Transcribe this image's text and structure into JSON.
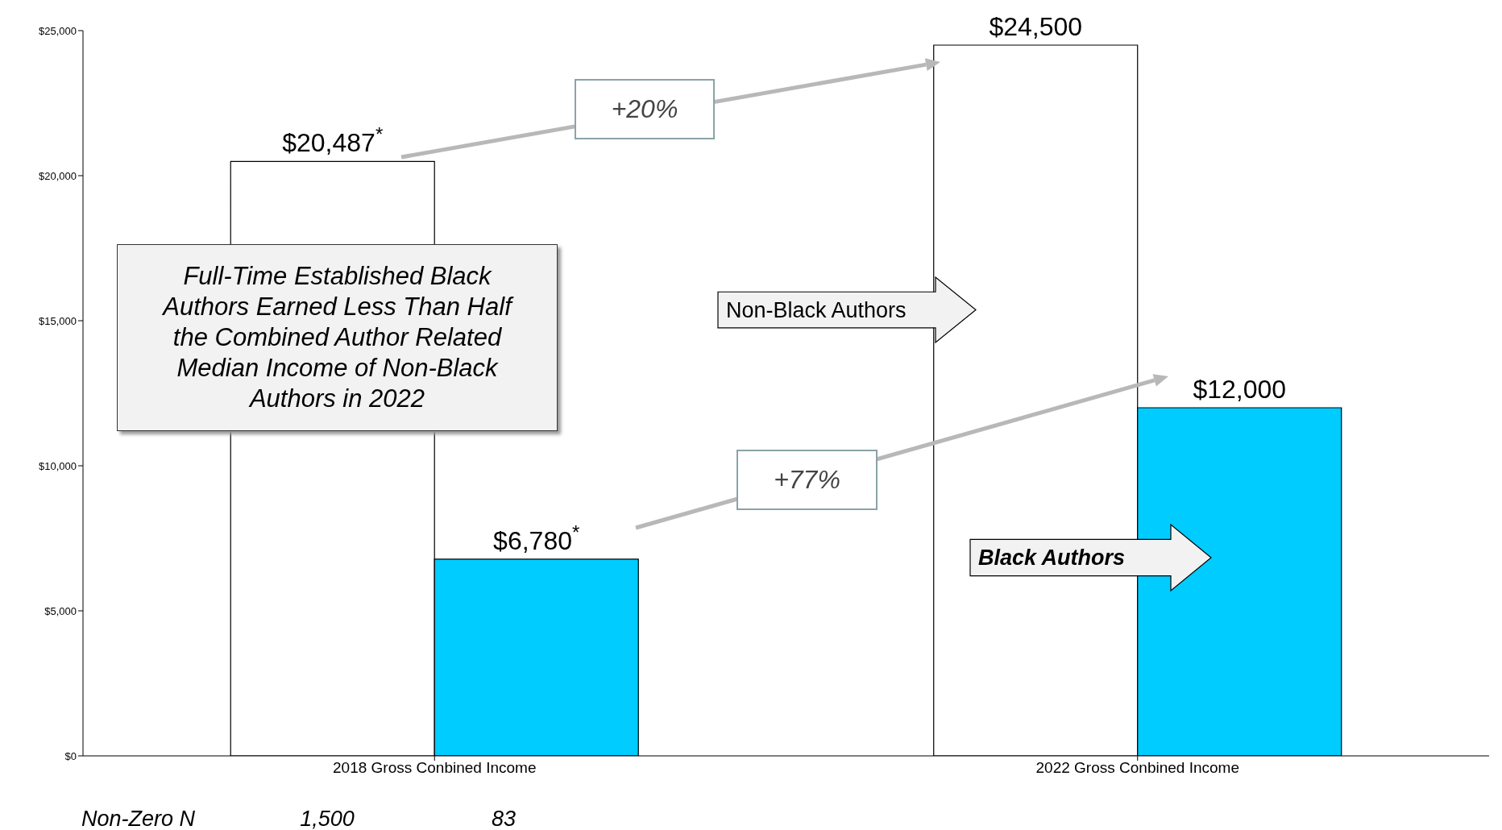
{
  "chart_data": {
    "type": "bar",
    "categories": [
      "2018 Gross Conbined Income",
      "2022 Gross Conbined Income"
    ],
    "series": [
      {
        "name": "Non-Black Authors",
        "color": "#ffffff",
        "values": [
          20487,
          24500
        ],
        "value_labels": [
          "$20,487$^{*}$",
          "$24,500"
        ]
      },
      {
        "name": "Black Authors",
        "color": "#00ccff",
        "values": [
          6780,
          12000
        ],
        "value_labels": [
          "$6,780$^{*}$",
          "$12,000"
        ]
      }
    ],
    "ylim": [
      0,
      25000
    ],
    "yticks": [
      {
        "value": 0,
        "label": "$0"
      },
      {
        "value": 5000,
        "label": "$5,000"
      },
      {
        "value": 10000,
        "label": "$10,000"
      },
      {
        "value": 15000,
        "label": "$15,000"
      },
      {
        "value": 20000,
        "label": "$20,000"
      },
      {
        "value": 25000,
        "label": "$25,000"
      }
    ],
    "annotations": [
      "Full-Time Established Black Authors Earned Less Than Half the Combined Author Related Median Income of Non-Black Authors in 2022",
      "+20%",
      "+77%",
      "Non-Zero N",
      "1,500",
      "83"
    ],
    "legend": false,
    "grid": false
  }
}
